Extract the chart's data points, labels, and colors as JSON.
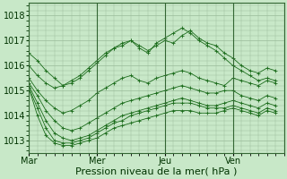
{
  "bg_color": "#c8e8c8",
  "plot_bg_color": "#c8e8c8",
  "grid_color": "#99bb99",
  "line_color": "#1a6b1a",
  "marker_color": "#1a6b1a",
  "xlabel": "Pression niveau de la mer( hPa )",
  "ylim": [
    1012.5,
    1018.5
  ],
  "yticks": [
    1013,
    1014,
    1015,
    1016,
    1017,
    1018
  ],
  "day_positions": [
    0,
    24,
    48,
    72
  ],
  "day_labels": [
    "Mar",
    "Mer",
    "Jeu",
    "Ven"
  ],
  "xlim": [
    0,
    90
  ],
  "figsize": [
    3.2,
    2.0
  ],
  "dpi": 100,
  "font_size_ticks": 7,
  "font_size_xlabel": 8,
  "series": [
    {
      "x": [
        0,
        3,
        6,
        9,
        12,
        15,
        18,
        21,
        24,
        27,
        30,
        33,
        36,
        39,
        42,
        45,
        48,
        51,
        54,
        57,
        60,
        63,
        66,
        69,
        72,
        75,
        78,
        81,
        84,
        87
      ],
      "y": [
        1016.5,
        1016.2,
        1015.8,
        1015.5,
        1015.2,
        1015.3,
        1015.5,
        1015.8,
        1016.1,
        1016.4,
        1016.7,
        1016.9,
        1017.0,
        1016.8,
        1016.6,
        1016.8,
        1017.0,
        1016.9,
        1017.2,
        1017.4,
        1017.1,
        1016.9,
        1016.8,
        1016.5,
        1016.3,
        1016.0,
        1015.8,
        1015.7,
        1015.9,
        1015.8
      ]
    },
    {
      "x": [
        0,
        3,
        6,
        9,
        12,
        15,
        18,
        21,
        24,
        27,
        30,
        33,
        36,
        39,
        42,
        45,
        48,
        51,
        54,
        57,
        60,
        63,
        66,
        69,
        72,
        75,
        78,
        81,
        84,
        87
      ],
      "y": [
        1016.0,
        1015.6,
        1015.3,
        1015.1,
        1015.2,
        1015.4,
        1015.6,
        1015.9,
        1016.2,
        1016.5,
        1016.7,
        1016.8,
        1017.0,
        1016.7,
        1016.5,
        1016.9,
        1017.1,
        1017.3,
        1017.5,
        1017.3,
        1017.0,
        1016.8,
        1016.6,
        1016.3,
        1016.0,
        1015.8,
        1015.6,
        1015.4,
        1015.5,
        1015.4
      ]
    },
    {
      "x": [
        0,
        3,
        6,
        9,
        12,
        15,
        18,
        21,
        24,
        27,
        30,
        33,
        36,
        39,
        42,
        45,
        48,
        51,
        54,
        57,
        60,
        63,
        66,
        69,
        72,
        75,
        78,
        81,
        84,
        87
      ],
      "y": [
        1015.5,
        1015.0,
        1014.6,
        1014.3,
        1014.1,
        1014.2,
        1014.4,
        1014.6,
        1014.9,
        1015.1,
        1015.3,
        1015.5,
        1015.6,
        1015.4,
        1015.3,
        1015.5,
        1015.6,
        1015.7,
        1015.8,
        1015.7,
        1015.5,
        1015.4,
        1015.3,
        1015.2,
        1015.5,
        1015.4,
        1015.3,
        1015.2,
        1015.4,
        1015.3
      ]
    },
    {
      "x": [
        0,
        3,
        6,
        9,
        12,
        15,
        18,
        21,
        24,
        27,
        30,
        33,
        36,
        39,
        42,
        45,
        48,
        51,
        54,
        57,
        60,
        63,
        66,
        69,
        72,
        75,
        78,
        81,
        84,
        87
      ],
      "y": [
        1015.3,
        1014.8,
        1014.2,
        1013.8,
        1013.5,
        1013.4,
        1013.5,
        1013.7,
        1013.9,
        1014.1,
        1014.3,
        1014.5,
        1014.6,
        1014.7,
        1014.8,
        1014.9,
        1015.0,
        1015.1,
        1015.2,
        1015.1,
        1015.0,
        1014.9,
        1014.9,
        1015.0,
        1015.0,
        1014.8,
        1014.7,
        1014.6,
        1014.8,
        1014.7
      ]
    },
    {
      "x": [
        0,
        3,
        6,
        9,
        12,
        15,
        18,
        21,
        24,
        27,
        30,
        33,
        36,
        39,
        42,
        45,
        48,
        51,
        54,
        57,
        60,
        63,
        66,
        69,
        72,
        75,
        78,
        81,
        84,
        87
      ],
      "y": [
        1015.2,
        1014.5,
        1013.8,
        1013.3,
        1013.1,
        1013.0,
        1013.1,
        1013.2,
        1013.4,
        1013.6,
        1013.8,
        1014.0,
        1014.1,
        1014.2,
        1014.3,
        1014.4,
        1014.5,
        1014.6,
        1014.7,
        1014.6,
        1014.5,
        1014.4,
        1014.4,
        1014.5,
        1014.6,
        1014.5,
        1014.4,
        1014.3,
        1014.5,
        1014.4
      ]
    },
    {
      "x": [
        0,
        3,
        6,
        9,
        12,
        15,
        18,
        21,
        24,
        27,
        30,
        33,
        36,
        39,
        42,
        45,
        48,
        51,
        54,
        57,
        60,
        63,
        66,
        69,
        72,
        75,
        78,
        81,
        84,
        87
      ],
      "y": [
        1015.1,
        1014.3,
        1013.5,
        1013.0,
        1012.9,
        1012.9,
        1013.0,
        1013.1,
        1013.3,
        1013.5,
        1013.7,
        1013.8,
        1014.0,
        1014.1,
        1014.2,
        1014.3,
        1014.4,
        1014.5,
        1014.5,
        1014.5,
        1014.4,
        1014.3,
        1014.3,
        1014.3,
        1014.4,
        1014.3,
        1014.2,
        1014.1,
        1014.3,
        1014.2
      ]
    },
    {
      "x": [
        0,
        3,
        6,
        9,
        12,
        15,
        18,
        21,
        24,
        27,
        30,
        33,
        36,
        39,
        42,
        45,
        48,
        51,
        54,
        57,
        60,
        63,
        66,
        69,
        72,
        75,
        78,
        81,
        84,
        87
      ],
      "y": [
        1015.1,
        1014.0,
        1013.2,
        1012.9,
        1012.8,
        1012.8,
        1012.9,
        1013.0,
        1013.1,
        1013.3,
        1013.5,
        1013.6,
        1013.7,
        1013.8,
        1013.9,
        1014.0,
        1014.1,
        1014.2,
        1014.2,
        1014.2,
        1014.1,
        1014.1,
        1014.1,
        1014.2,
        1014.3,
        1014.2,
        1014.1,
        1014.0,
        1014.2,
        1014.1
      ]
    }
  ]
}
